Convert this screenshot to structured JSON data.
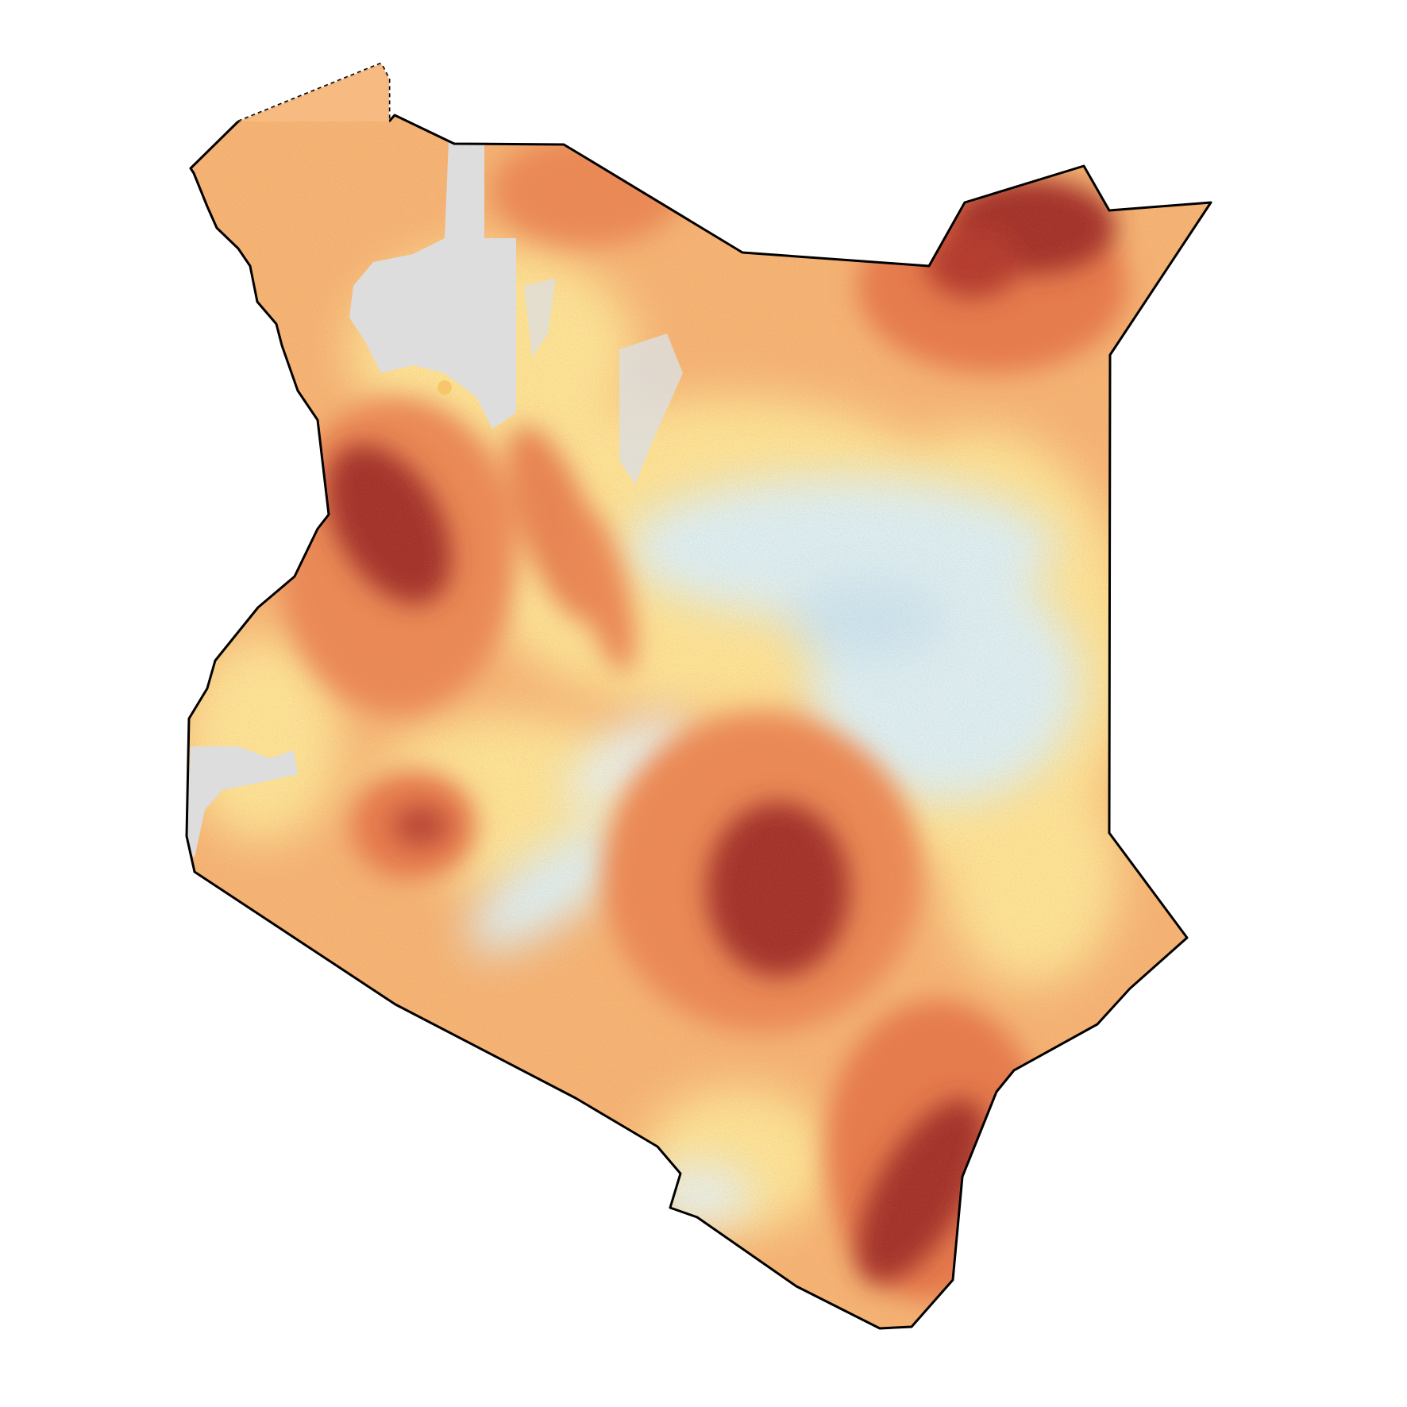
{
  "map": {
    "type": "raster-choropleth",
    "region_outline": "country-boundary",
    "disputed_boundary_style": "dotted",
    "has_title": false,
    "has_legend": false,
    "colors": {
      "background": "#ffffff",
      "outline": "#000000",
      "no_data": "#dddddd",
      "ramp": [
        "#a3302a",
        "#d8603f",
        "#ef915c",
        "#f9bf78",
        "#fde395",
        "#fdf0ae",
        "#ddeff3",
        "#cce4f0"
      ]
    },
    "hotspots": [
      "north-east",
      "north-west",
      "central-south",
      "south-east-coast"
    ],
    "cool_zones": [
      "east-central",
      "central-corridor"
    ],
    "no_data_zones": [
      "north-central",
      "west-border"
    ]
  }
}
